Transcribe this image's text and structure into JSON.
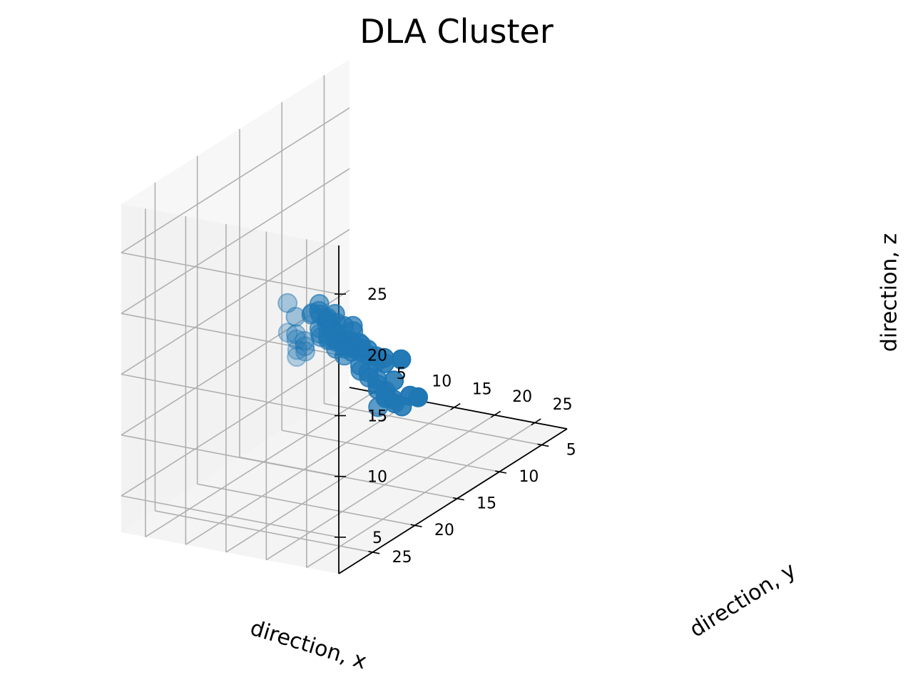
{
  "chart_data": {
    "type": "scatter3d",
    "title": "DLA Cluster",
    "xlabel": "direction, x",
    "ylabel": "direction, y",
    "zlabel": "direction, z",
    "xlim": [
      2,
      29
    ],
    "ylim": [
      2,
      29
    ],
    "zlim": [
      2,
      29
    ],
    "xticks": [
      5,
      10,
      15,
      20,
      25
    ],
    "yticks": [
      5,
      10,
      15,
      20,
      25
    ],
    "zticks": [
      5,
      10,
      15,
      20,
      25
    ],
    "grid": true,
    "marker_color": "#1f77b4",
    "points": [
      [
        14,
        15,
        13
      ],
      [
        14,
        16,
        14
      ],
      [
        15,
        15,
        12
      ],
      [
        15,
        16,
        13
      ],
      [
        16,
        15,
        13
      ],
      [
        16,
        14,
        12
      ],
      [
        15,
        14,
        14
      ],
      [
        14,
        14,
        12
      ],
      [
        13,
        15,
        13
      ],
      [
        13,
        16,
        14
      ],
      [
        14,
        17,
        15
      ],
      [
        15,
        17,
        16
      ],
      [
        16,
        17,
        15
      ],
      [
        16,
        18,
        16
      ],
      [
        17,
        18,
        17
      ],
      [
        17,
        19,
        17
      ],
      [
        18,
        19,
        16
      ],
      [
        18,
        18,
        15
      ],
      [
        18,
        17,
        14
      ],
      [
        17,
        17,
        14
      ],
      [
        17,
        16,
        13
      ],
      [
        18,
        16,
        12
      ],
      [
        19,
        16,
        13
      ],
      [
        19,
        15,
        12
      ],
      [
        20,
        15,
        12
      ],
      [
        20,
        16,
        13
      ],
      [
        21,
        16,
        13
      ],
      [
        19,
        17,
        14
      ],
      [
        18,
        15,
        11
      ],
      [
        17,
        15,
        11
      ],
      [
        17,
        14,
        10
      ],
      [
        18,
        14,
        10
      ],
      [
        17,
        13,
        9
      ],
      [
        17,
        12,
        8
      ],
      [
        16,
        12,
        8
      ],
      [
        16,
        11,
        7
      ],
      [
        15,
        11,
        6
      ],
      [
        16,
        10,
        6
      ],
      [
        18,
        13,
        8
      ],
      [
        19,
        13,
        8
      ],
      [
        19,
        12,
        7
      ],
      [
        20,
        12,
        8
      ],
      [
        21,
        12,
        8
      ],
      [
        15,
        13,
        12
      ],
      [
        14,
        13,
        13
      ],
      [
        13,
        14,
        14
      ],
      [
        12,
        14,
        14
      ],
      [
        12,
        15,
        15
      ],
      [
        11,
        15,
        15
      ],
      [
        10,
        16,
        15
      ],
      [
        9,
        16,
        16
      ],
      [
        12,
        13,
        12
      ],
      [
        11,
        13,
        12
      ],
      [
        10,
        13,
        12
      ],
      [
        9,
        14,
        12
      ],
      [
        9,
        15,
        13
      ],
      [
        8,
        15,
        13
      ],
      [
        8,
        14,
        12
      ],
      [
        8,
        13,
        11
      ],
      [
        7,
        13,
        10
      ],
      [
        7,
        12,
        10
      ],
      [
        6,
        12,
        10
      ],
      [
        16,
        16,
        15
      ],
      [
        15,
        18,
        17
      ],
      [
        14,
        17,
        17
      ],
      [
        13,
        17,
        16
      ],
      [
        19,
        18,
        15
      ],
      [
        20,
        18,
        15
      ],
      [
        20,
        17,
        14
      ],
      [
        21,
        14,
        12
      ],
      [
        13,
        12,
        11
      ],
      [
        18,
        12,
        9
      ]
    ]
  }
}
